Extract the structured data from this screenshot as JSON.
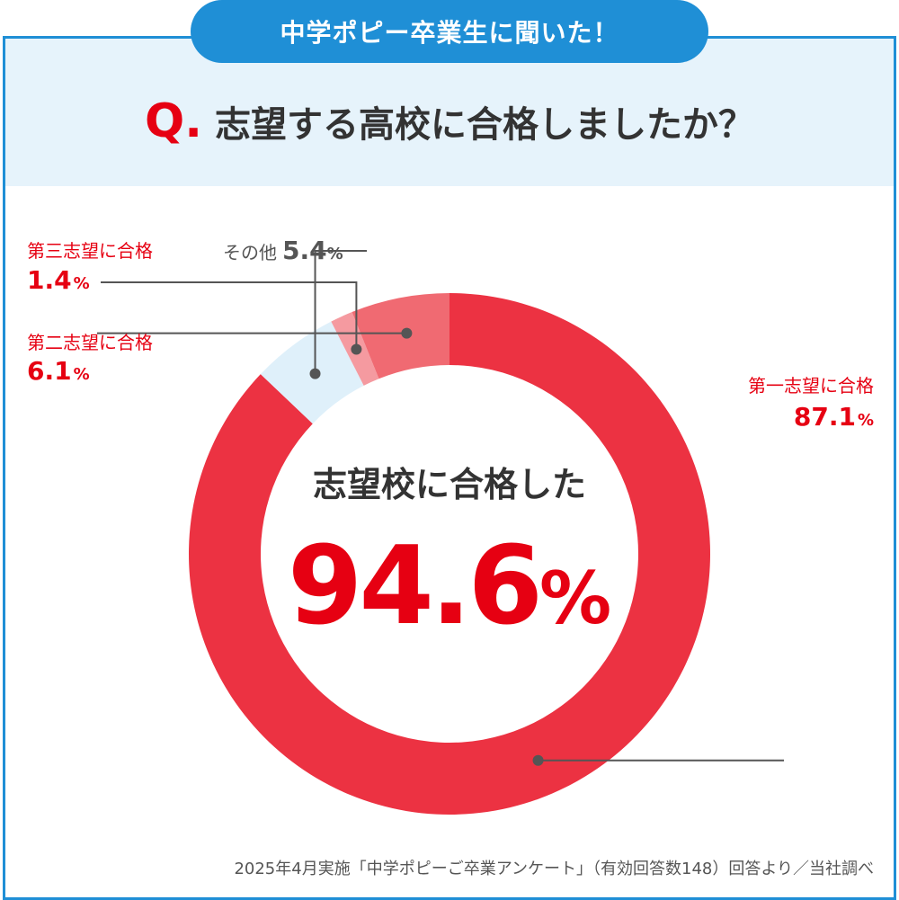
{
  "header": {
    "badge": "中学ポピー卒業生に聞いた！",
    "question_mark": "Q.",
    "question": "志望する高校に合格しましたか？"
  },
  "center": {
    "title": "志望校に合格した",
    "value": "94.6",
    "unit": "%"
  },
  "footnote": "2025年4月実施「中学ポピーご卒業アンケート」（有効回答数148）回答より／当社調べ",
  "colors": {
    "accent": "#e60012",
    "frame": "#1f8fd6",
    "band": "#e6f3fb"
  },
  "chart_data": {
    "type": "pie",
    "donut": true,
    "title": "",
    "slices": [
      {
        "name": "第一志望に合格",
        "value": 87.1,
        "display": "87.1",
        "color": "#ec3242"
      },
      {
        "name": "その他",
        "value": 5.4,
        "display": "5.4",
        "color": "#dff0fa"
      },
      {
        "name": "第三志望に合格",
        "value": 1.4,
        "display": "1.4",
        "color": "#f59aa0"
      },
      {
        "name": "第二志望に合格",
        "value": 6.1,
        "display": "6.1",
        "color": "#f06a72"
      }
    ],
    "unit": "%"
  }
}
